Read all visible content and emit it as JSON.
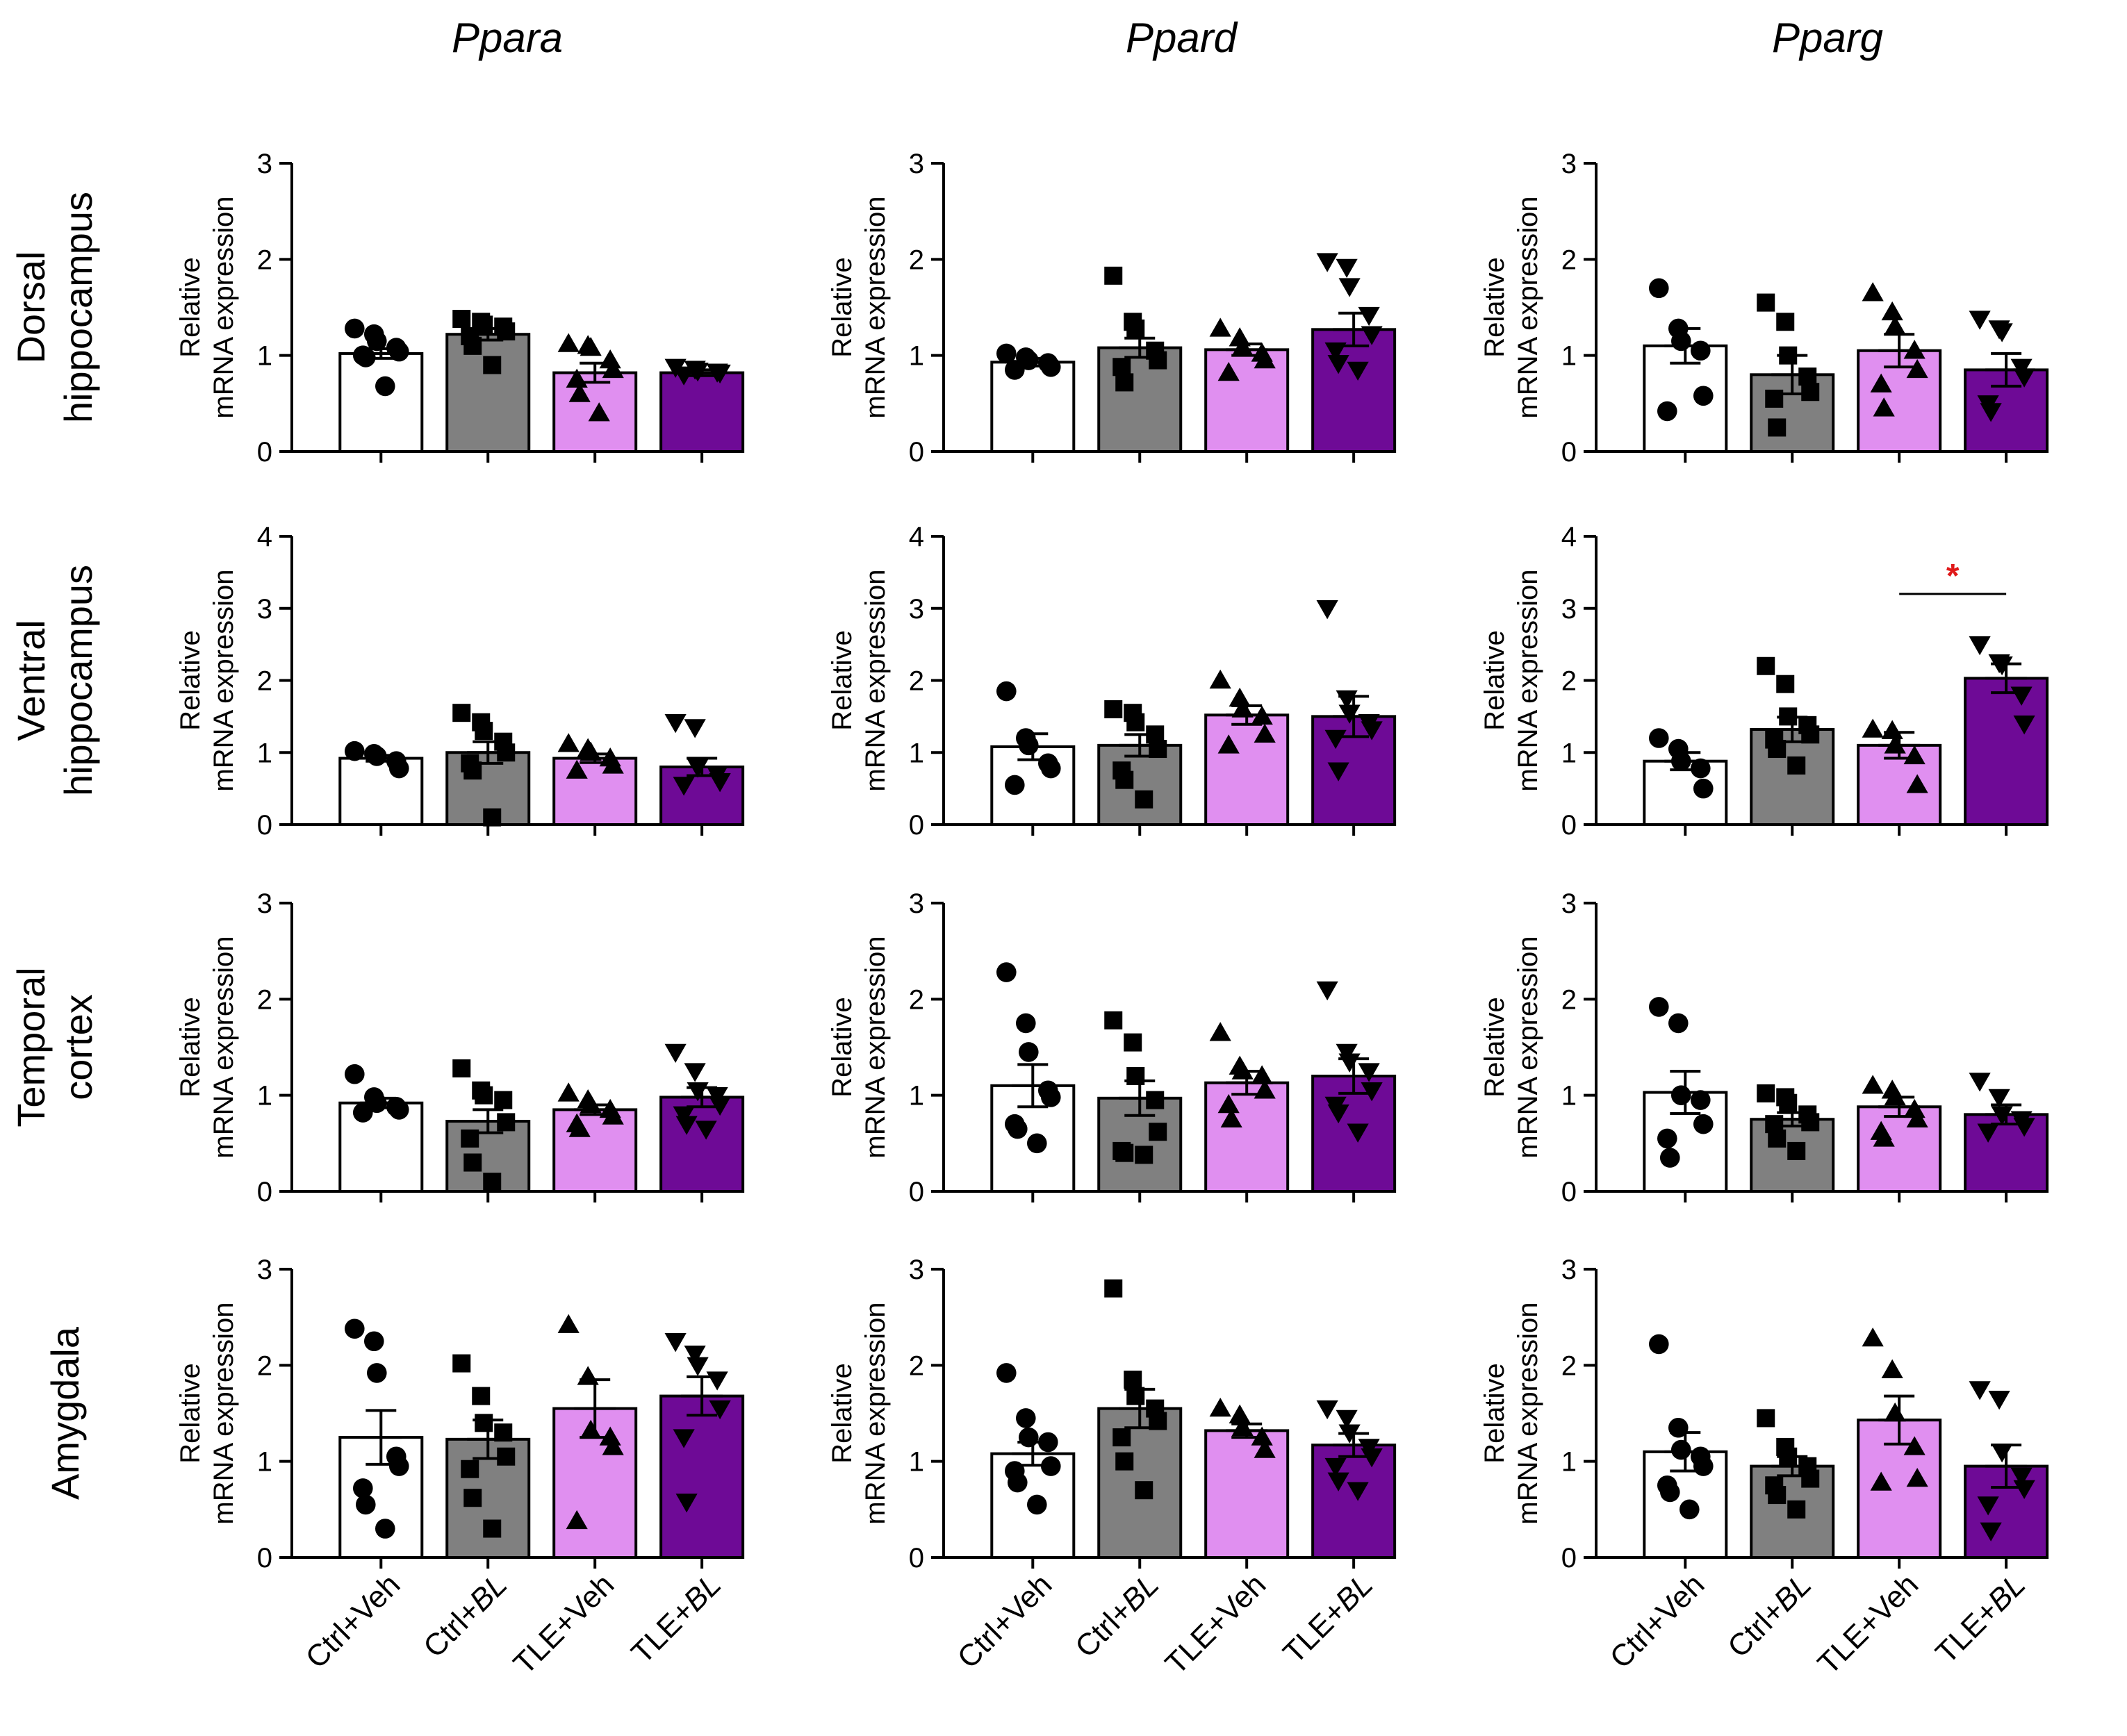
{
  "figure": {
    "col_titles": [
      "Ppara",
      "Ppard",
      "Pparg"
    ],
    "row_labels": [
      [
        "Dorsal",
        "hippocampus"
      ],
      [
        "Ventral",
        "hippocampus"
      ],
      [
        "Temporal",
        "cortex"
      ],
      [
        "Amygdala"
      ]
    ],
    "ylabel_lines": [
      "Relative",
      "mRNA expression"
    ],
    "x_groups": [
      {
        "base": "Ctrl+",
        "italic": "Veh",
        "label": "Ctrl+Veh",
        "italic_part": false
      },
      {
        "base": "Ctrl+",
        "italic": "BL",
        "label": "Ctrl+BL",
        "italic_part": true
      },
      {
        "base": "TLE+",
        "italic": "Veh",
        "label": "TLE+Veh",
        "italic_part": false
      },
      {
        "base": "TLE+",
        "italic": "BL",
        "label": "TLE+BL",
        "italic_part": true
      }
    ],
    "colors": {
      "Ctrl+Veh": "#ffffff",
      "Ctrl+BL": "#808080",
      "TLE+Veh": "#e08ff0",
      "TLE+BL": "#6e0a96",
      "significance": "#e0191a"
    },
    "markers": [
      "circle",
      "square",
      "triangle-up",
      "triangle-down"
    ],
    "significance_symbol": "*"
  },
  "chart_data": [
    {
      "type": "bar",
      "row": "Dorsal hippocampus",
      "gene": "Ppara",
      "ylim": [
        0,
        3
      ],
      "yticks": [
        0,
        1,
        2,
        3
      ],
      "categories": [
        "Ctrl+Veh",
        "Ctrl+BL",
        "TLE+Veh",
        "TLE+BL"
      ],
      "values": [
        1.02,
        1.22,
        0.82,
        0.82
      ],
      "sem": [
        0.05,
        0.06,
        0.1,
        0.03
      ],
      "points": [
        [
          1.28,
          1.22,
          1.15,
          1.08,
          1.04,
          1.0,
          0.98,
          0.68
        ],
        [
          1.38,
          1.35,
          1.32,
          1.3,
          1.25,
          1.2,
          1.1,
          0.9
        ],
        [
          1.12,
          1.1,
          1.08,
          0.95,
          0.85,
          0.75,
          0.6,
          0.4
        ],
        [
          0.88,
          0.86,
          0.84,
          0.83,
          0.82,
          0.8
        ]
      ]
    },
    {
      "type": "bar",
      "row": "Dorsal hippocampus",
      "gene": "Ppard",
      "ylim": [
        0,
        3
      ],
      "yticks": [
        0,
        1,
        2,
        3
      ],
      "categories": [
        "Ctrl+Veh",
        "Ctrl+BL",
        "TLE+Veh",
        "TLE+BL"
      ],
      "values": [
        0.93,
        1.08,
        1.06,
        1.27
      ],
      "sem": [
        0.04,
        0.1,
        0.06,
        0.17
      ],
      "points": [
        [
          1.02,
          0.98,
          0.95,
          0.92,
          0.88,
          0.85
        ],
        [
          1.83,
          1.35,
          1.28,
          1.05,
          0.95,
          0.88,
          0.72
        ],
        [
          1.28,
          1.18,
          1.08,
          1.02,
          0.95,
          0.82
        ],
        [
          1.98,
          1.92,
          1.72,
          1.42,
          1.22,
          1.05,
          0.92,
          0.85
        ]
      ]
    },
    {
      "type": "bar",
      "row": "Dorsal hippocampus",
      "gene": "Pparg",
      "ylim": [
        0,
        3
      ],
      "yticks": [
        0,
        1,
        2,
        3
      ],
      "categories": [
        "Ctrl+Veh",
        "Ctrl+BL",
        "TLE+Veh",
        "TLE+BL"
      ],
      "values": [
        1.1,
        0.8,
        1.05,
        0.85
      ],
      "sem": [
        0.18,
        0.2,
        0.17,
        0.17
      ],
      "points": [
        [
          1.7,
          1.28,
          1.15,
          1.05,
          0.58,
          0.42
        ],
        [
          1.55,
          1.35,
          1.0,
          0.78,
          0.62,
          0.55,
          0.25
        ],
        [
          1.65,
          1.45,
          1.3,
          1.05,
          0.85,
          0.7,
          0.45
        ],
        [
          1.38,
          1.28,
          1.25,
          0.88,
          0.78,
          0.5,
          0.42
        ]
      ]
    },
    {
      "type": "bar",
      "row": "Ventral hippocampus",
      "gene": "Ppara",
      "ylim": [
        0,
        4
      ],
      "yticks": [
        0,
        1,
        2,
        3,
        4
      ],
      "categories": [
        "Ctrl+Veh",
        "Ctrl+BL",
        "TLE+Veh",
        "TLE+BL"
      ],
      "values": [
        0.92,
        1.0,
        0.92,
        0.8
      ],
      "sem": [
        0.04,
        0.15,
        0.06,
        0.12
      ],
      "points": [
        [
          1.02,
          0.98,
          0.95,
          0.88,
          0.78
        ],
        [
          1.55,
          1.42,
          1.3,
          1.15,
          1.0,
          0.85,
          0.75,
          0.1
        ],
        [
          1.12,
          1.05,
          1.0,
          0.92,
          0.82,
          0.75
        ],
        [
          1.42,
          1.35,
          0.8,
          0.7,
          0.6,
          0.55
        ]
      ]
    },
    {
      "type": "bar",
      "row": "Ventral hippocampus",
      "gene": "Ppard",
      "ylim": [
        0,
        4
      ],
      "yticks": [
        0,
        1,
        2,
        3,
        4
      ],
      "categories": [
        "Ctrl+Veh",
        "Ctrl+BL",
        "TLE+Veh",
        "TLE+BL"
      ],
      "values": [
        1.08,
        1.1,
        1.52,
        1.5
      ],
      "sem": [
        0.18,
        0.15,
        0.13,
        0.28
      ],
      "points": [
        [
          1.85,
          1.2,
          1.1,
          0.85,
          0.78,
          0.55
        ],
        [
          1.6,
          1.55,
          1.42,
          1.25,
          1.05,
          0.75,
          0.62,
          0.35
        ],
        [
          2.0,
          1.75,
          1.6,
          1.5,
          1.25,
          1.1
        ],
        [
          3.0,
          1.75,
          1.55,
          1.42,
          1.32,
          1.2,
          0.75
        ]
      ]
    },
    {
      "type": "bar",
      "row": "Ventral hippocampus",
      "gene": "Pparg",
      "ylim": [
        0,
        4
      ],
      "yticks": [
        0,
        1,
        2,
        3,
        4
      ],
      "categories": [
        "Ctrl+Veh",
        "Ctrl+BL",
        "TLE+Veh",
        "TLE+BL"
      ],
      "values": [
        0.88,
        1.32,
        1.1,
        2.03
      ],
      "sem": [
        0.12,
        0.17,
        0.18,
        0.2
      ],
      "points": [
        [
          1.2,
          1.05,
          0.88,
          0.78,
          0.5
        ],
        [
          2.2,
          1.95,
          1.5,
          1.38,
          1.25,
          1.18,
          1.05,
          0.82
        ],
        [
          1.32,
          1.3,
          1.1,
          0.95,
          0.55
        ],
        [
          2.5,
          2.25,
          2.22,
          1.8,
          1.4
        ]
      ],
      "significance": [
        {
          "from": 2,
          "to": 3,
          "y": 3.2,
          "label": "*"
        }
      ]
    },
    {
      "type": "bar",
      "row": "Temporal cortex",
      "gene": "Ppara",
      "ylim": [
        0,
        3
      ],
      "yticks": [
        0,
        1,
        2,
        3
      ],
      "categories": [
        "Ctrl+Veh",
        "Ctrl+BL",
        "TLE+Veh",
        "TLE+BL"
      ],
      "values": [
        0.92,
        0.73,
        0.85,
        0.98
      ],
      "sem": [
        0.05,
        0.12,
        0.05,
        0.1
      ],
      "points": [
        [
          1.22,
          0.98,
          0.92,
          0.88,
          0.85,
          0.82
        ],
        [
          1.28,
          1.05,
          1.0,
          0.95,
          0.72,
          0.55,
          0.3,
          0.1
        ],
        [
          1.02,
          0.95,
          0.9,
          0.85,
          0.78,
          0.7,
          0.65
        ],
        [
          1.45,
          1.25,
          1.05,
          1.0,
          0.9,
          0.8,
          0.7,
          0.65
        ]
      ]
    },
    {
      "type": "bar",
      "row": "Temporal cortex",
      "gene": "Ppard",
      "ylim": [
        0,
        3
      ],
      "yticks": [
        0,
        1,
        2,
        3
      ],
      "categories": [
        "Ctrl+Veh",
        "Ctrl+BL",
        "TLE+Veh",
        "TLE+BL"
      ],
      "values": [
        1.1,
        0.97,
        1.13,
        1.2
      ],
      "sem": [
        0.22,
        0.18,
        0.12,
        0.18
      ],
      "points": [
        [
          2.28,
          1.75,
          1.45,
          1.05,
          0.98,
          0.7,
          0.65,
          0.5
        ],
        [
          1.78,
          1.55,
          1.2,
          0.95,
          0.62,
          0.42,
          0.4,
          0.38
        ],
        [
          1.65,
          1.3,
          1.25,
          1.2,
          1.05,
          0.9,
          0.75
        ],
        [
          2.1,
          1.45,
          1.35,
          1.25,
          1.05,
          0.9,
          0.82,
          0.62
        ]
      ]
    },
    {
      "type": "bar",
      "row": "Temporal cortex",
      "gene": "Pparg",
      "ylim": [
        0,
        3
      ],
      "yticks": [
        0,
        1,
        2,
        3
      ],
      "categories": [
        "Ctrl+Veh",
        "Ctrl+BL",
        "TLE+Veh",
        "TLE+BL"
      ],
      "values": [
        1.03,
        0.75,
        0.88,
        0.8
      ],
      "sem": [
        0.22,
        0.07,
        0.1,
        0.1
      ],
      "points": [
        [
          1.92,
          1.75,
          1.0,
          0.95,
          0.7,
          0.55,
          0.35
        ],
        [
          1.02,
          0.98,
          0.92,
          0.8,
          0.72,
          0.7,
          0.55,
          0.42
        ],
        [
          1.1,
          1.05,
          0.98,
          0.85,
          0.75,
          0.62,
          0.55
        ],
        [
          1.15,
          0.98,
          0.8,
          0.75,
          0.68,
          0.62
        ]
      ]
    },
    {
      "type": "bar",
      "row": "Amygdala",
      "gene": "Ppara",
      "ylim": [
        0,
        3
      ],
      "yticks": [
        0,
        1,
        2,
        3
      ],
      "categories": [
        "Ctrl+Veh",
        "Ctrl+BL",
        "TLE+Veh",
        "TLE+BL"
      ],
      "values": [
        1.25,
        1.23,
        1.55,
        1.68
      ],
      "sem": [
        0.28,
        0.2,
        0.3,
        0.2
      ],
      "points": [
        [
          2.38,
          2.25,
          1.92,
          1.05,
          0.95,
          0.72,
          0.55,
          0.3
        ],
        [
          2.02,
          1.68,
          1.4,
          1.3,
          1.05,
          0.92,
          0.62,
          0.3
        ],
        [
          2.42,
          1.88,
          1.32,
          1.25,
          1.15,
          0.38
        ],
        [
          2.25,
          2.12,
          2.0,
          1.85,
          1.55,
          1.25,
          0.58
        ]
      ]
    },
    {
      "type": "bar",
      "row": "Amygdala",
      "gene": "Ppard",
      "ylim": [
        0,
        3
      ],
      "yticks": [
        0,
        1,
        2,
        3
      ],
      "categories": [
        "Ctrl+Veh",
        "Ctrl+BL",
        "TLE+Veh",
        "TLE+BL"
      ],
      "values": [
        1.08,
        1.55,
        1.32,
        1.17
      ],
      "sem": [
        0.12,
        0.2,
        0.07,
        0.12
      ],
      "points": [
        [
          1.92,
          1.45,
          1.25,
          1.2,
          0.95,
          0.9,
          0.78,
          0.55
        ],
        [
          2.8,
          1.85,
          1.68,
          1.55,
          1.42,
          1.25,
          1.0,
          0.7
        ],
        [
          1.55,
          1.48,
          1.35,
          1.25,
          1.12
        ],
        [
          1.55,
          1.45,
          1.3,
          1.15,
          1.05,
          0.95,
          0.8,
          0.7
        ]
      ]
    },
    {
      "type": "bar",
      "row": "Amygdala",
      "gene": "Pparg",
      "ylim": [
        0,
        3
      ],
      "yticks": [
        0,
        1,
        2,
        3
      ],
      "categories": [
        "Ctrl+Veh",
        "Ctrl+BL",
        "TLE+Veh",
        "TLE+BL"
      ],
      "values": [
        1.1,
        0.95,
        1.43,
        0.95
      ],
      "sem": [
        0.2,
        0.1,
        0.25,
        0.22
      ],
      "points": [
        [
          2.22,
          1.35,
          1.12,
          1.05,
          0.95,
          0.75,
          0.68,
          0.5
        ],
        [
          1.45,
          1.15,
          1.05,
          0.95,
          0.82,
          0.75,
          0.65,
          0.5
        ],
        [
          2.28,
          1.95,
          1.5,
          1.15,
          0.82,
          0.78
        ],
        [
          1.75,
          1.65,
          1.1,
          0.85,
          0.72,
          0.55,
          0.28
        ]
      ]
    }
  ]
}
